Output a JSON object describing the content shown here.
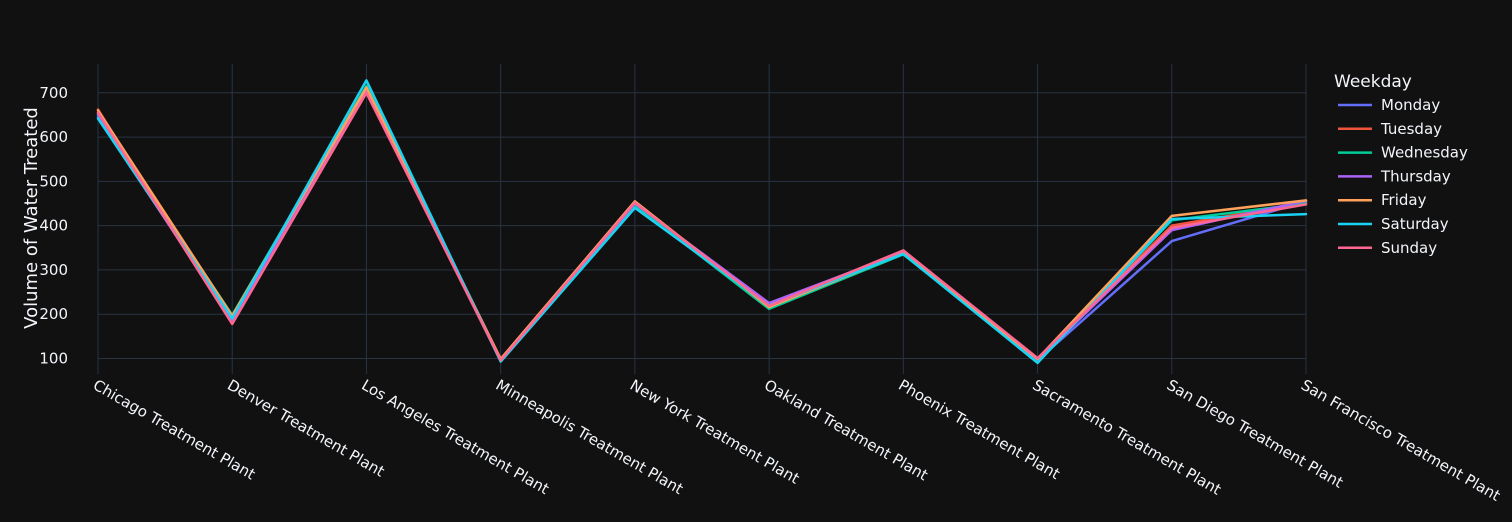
{
  "chart_data": {
    "type": "line",
    "ylabel": "Volume of Water Treated",
    "xlabel": "",
    "legend_title": "Weekday",
    "legend_position": "top-right",
    "grid": true,
    "ylim": [
      65,
      765
    ],
    "yticks": [
      100,
      200,
      300,
      400,
      500,
      600,
      700
    ],
    "categories": [
      "Chicago Treatment Plant",
      "Denver Treatment Plant",
      "Los Angeles Treatment Plant",
      "Minneapolis Treatment Plant",
      "New York Treatment Plant",
      "Oakland Treatment Plant",
      "Phoenix Treatment Plant",
      "Sacramento Treatment Plant",
      "San Diego Treatment Plant",
      "San Francisco Treatment Plant"
    ],
    "series": [
      {
        "name": "Monday",
        "color": "#636efa",
        "values": [
          645,
          185,
          705,
          95,
          445,
          222,
          338,
          96,
          365,
          455
        ]
      },
      {
        "name": "Tuesday",
        "color": "#ef553b",
        "values": [
          662,
          180,
          700,
          98,
          452,
          218,
          342,
          100,
          400,
          452
        ]
      },
      {
        "name": "Wednesday",
        "color": "#00cc96",
        "values": [
          650,
          198,
          715,
          94,
          446,
          212,
          335,
          95,
          412,
          450
        ]
      },
      {
        "name": "Thursday",
        "color": "#ab63fa",
        "values": [
          652,
          186,
          710,
          97,
          450,
          225,
          340,
          98,
          390,
          456
        ]
      },
      {
        "name": "Friday",
        "color": "#ffa15a",
        "values": [
          660,
          196,
          712,
          99,
          455,
          216,
          337,
          99,
          422,
          457
        ]
      },
      {
        "name": "Saturday",
        "color": "#19d3f3",
        "values": [
          642,
          190,
          728,
          93,
          440,
          220,
          336,
          90,
          415,
          426
        ]
      },
      {
        "name": "Sunday",
        "color": "#ff6692",
        "values": [
          655,
          178,
          700,
          96,
          452,
          219,
          344,
          101,
          395,
          448
        ]
      }
    ]
  }
}
